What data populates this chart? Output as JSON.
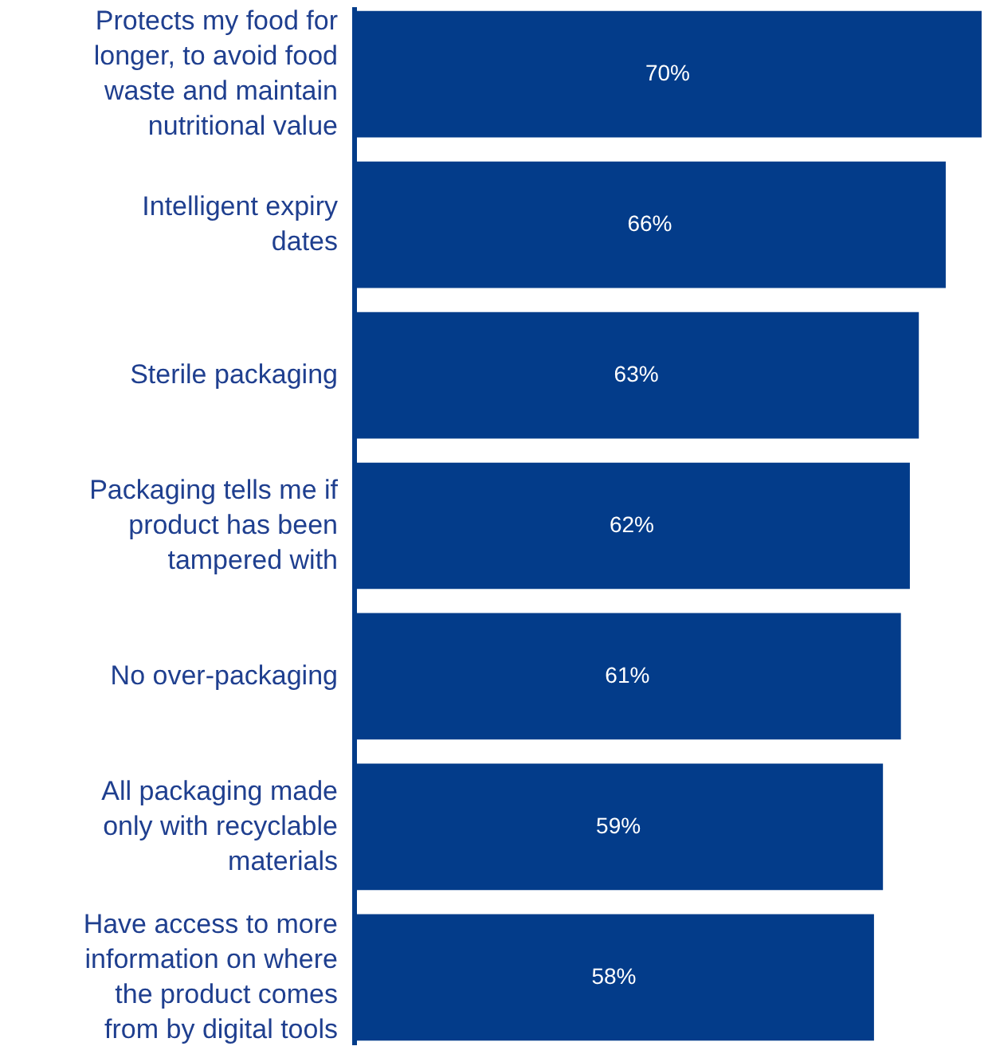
{
  "chart_data": {
    "type": "bar",
    "orientation": "horizontal",
    "data_labels": true,
    "color": "#033c8a",
    "categories": [
      "Protects my food for longer, to avoid food waste and maintain nutritional value",
      "Intelligent expiry dates",
      "Sterile packaging",
      "Packaging tells me if product has been tampered with",
      "No over-packaging",
      "All packaging made only with recyclable materials",
      "Have access to more information on where the product comes from by digital tools"
    ],
    "values": [
      70,
      66,
      63,
      62,
      61,
      59,
      58
    ],
    "value_labels": [
      "70%",
      "66%",
      "63%",
      "62%",
      "61%",
      "59%",
      "58%"
    ]
  }
}
